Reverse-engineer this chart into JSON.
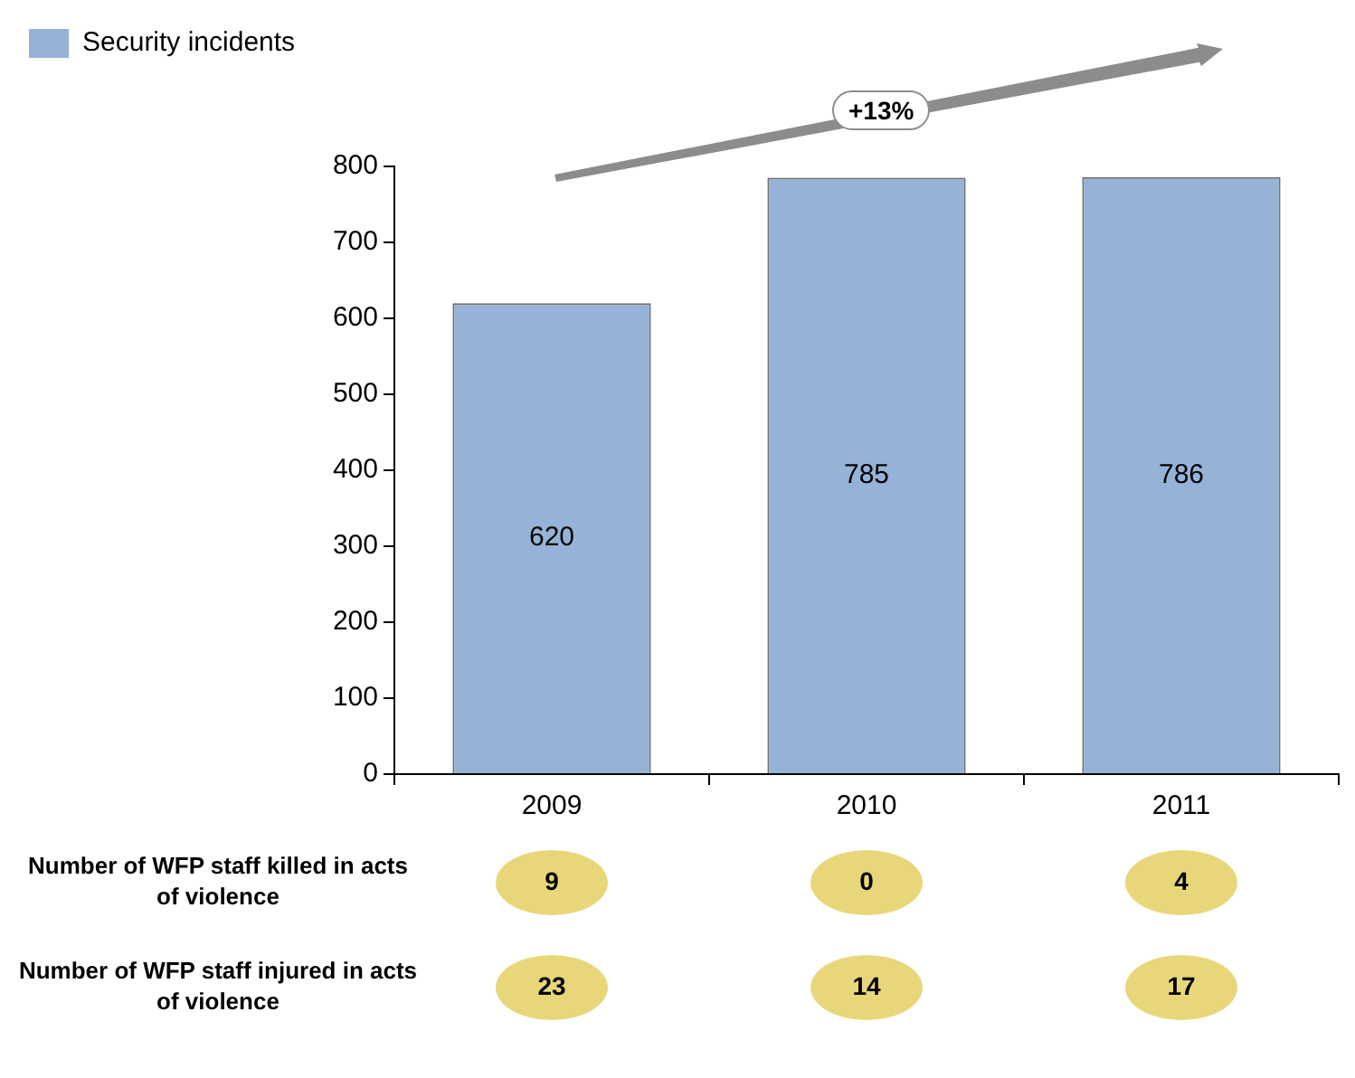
{
  "chart_data": {
    "type": "bar",
    "categories": [
      "2009",
      "2010",
      "2011"
    ],
    "series": [
      {
        "name": "Security incidents",
        "color": "#95b3d7",
        "values": [
          620,
          785,
          786
        ]
      }
    ],
    "ylim": [
      0,
      800
    ],
    "yticks": [
      0,
      100,
      200,
      300,
      400,
      500,
      600,
      700,
      800
    ],
    "grid": false,
    "legend": "top left",
    "data_labels": true,
    "annotations": [
      "+13%",
      "Number of WFP staff killed in acts of violence",
      "9",
      "0",
      "4",
      "Number of WFP staff injured in acts of violence",
      "23",
      "14",
      "17"
    ]
  }
}
